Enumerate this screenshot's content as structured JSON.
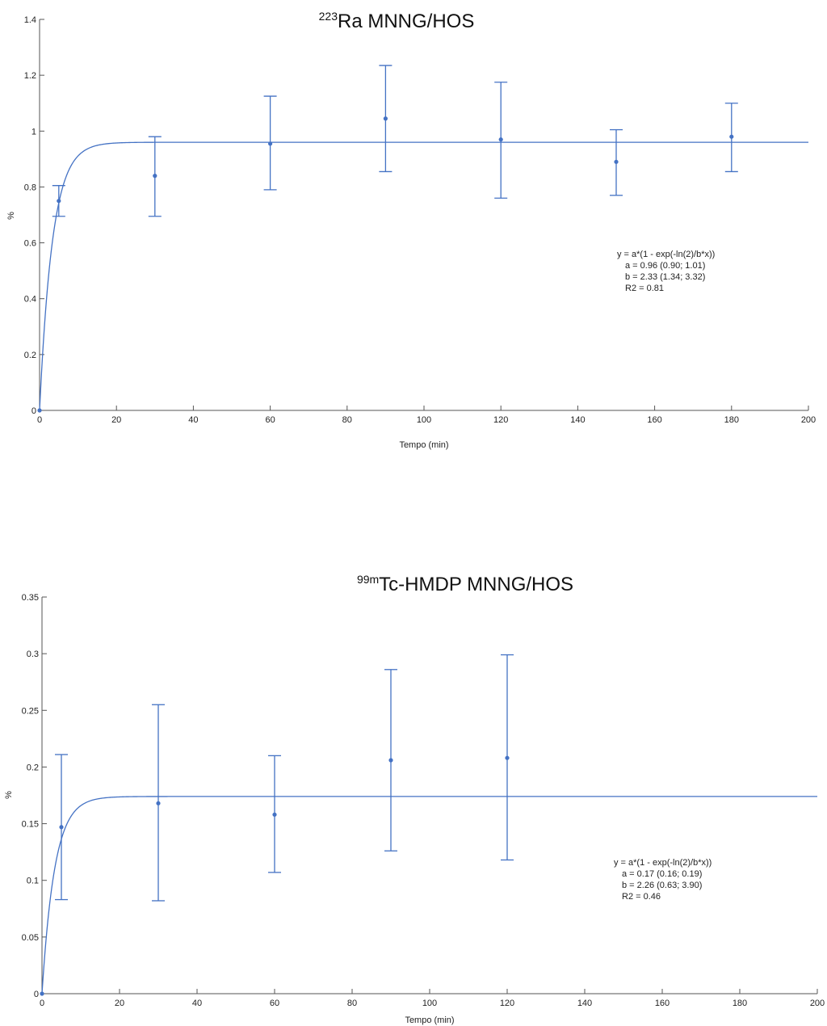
{
  "chart_data": [
    {
      "type": "scatter",
      "title_sup": "223",
      "title_main": "Ra  MNNG/HOS",
      "xlabel": "Tempo (min)",
      "ylabel": "%",
      "xlim": [
        0,
        200
      ],
      "ylim": [
        0,
        1.4
      ],
      "xticks": [
        "0",
        "20",
        "40",
        "60",
        "80",
        "100",
        "120",
        "140",
        "160",
        "180",
        "200"
      ],
      "yticks": [
        "0",
        "0.2",
        "0.4",
        "0.6",
        "0.8",
        "1",
        "1.2",
        "1.4"
      ],
      "xtick_values": [
        0,
        20,
        40,
        60,
        80,
        100,
        120,
        140,
        160,
        180,
        200
      ],
      "ytick_values": [
        0,
        0.2,
        0.4,
        0.6,
        0.8,
        1.0,
        1.2,
        1.4
      ],
      "color": "#4472c4",
      "points": [
        {
          "x": 0,
          "y": 0,
          "err_low": 0,
          "err_high": 0
        },
        {
          "x": 5,
          "y": 0.75,
          "err_low": 0.695,
          "err_high": 0.805
        },
        {
          "x": 30,
          "y": 0.84,
          "err_low": 0.695,
          "err_high": 0.98
        },
        {
          "x": 60,
          "y": 0.955,
          "err_low": 0.79,
          "err_high": 1.125
        },
        {
          "x": 90,
          "y": 1.045,
          "err_low": 0.855,
          "err_high": 1.235
        },
        {
          "x": 120,
          "y": 0.97,
          "err_low": 0.76,
          "err_high": 1.175
        },
        {
          "x": 150,
          "y": 0.89,
          "err_low": 0.77,
          "err_high": 1.005
        },
        {
          "x": 180,
          "y": 0.98,
          "err_low": 0.855,
          "err_high": 1.1
        }
      ],
      "fit": {
        "a": 0.96,
        "b": 2.33
      },
      "annotation": [
        "y = a*(1 - exp(-ln(2)/b*x))",
        "a = 0.96 (0.90; 1.01)",
        "b = 2.33 (1.34; 3.32)",
        "R2 = 0.81"
      ]
    },
    {
      "type": "scatter",
      "title_sup": "99m",
      "title_main": "Tc-HMDP MNNG/HOS",
      "xlabel": "Tempo (min)",
      "ylabel": "%",
      "xlim": [
        0,
        200
      ],
      "ylim": [
        0,
        0.35
      ],
      "xticks": [
        "0",
        "20",
        "40",
        "60",
        "80",
        "100",
        "120",
        "140",
        "160",
        "180",
        "200"
      ],
      "yticks": [
        "0",
        "0.05",
        "0.1",
        "0.15",
        "0.2",
        "0.25",
        "0.3",
        "0.35"
      ],
      "xtick_values": [
        0,
        20,
        40,
        60,
        80,
        100,
        120,
        140,
        160,
        180,
        200
      ],
      "ytick_values": [
        0,
        0.05,
        0.1,
        0.15,
        0.2,
        0.25,
        0.3,
        0.35
      ],
      "color": "#4472c4",
      "points": [
        {
          "x": 0,
          "y": 0,
          "err_low": 0,
          "err_high": 0
        },
        {
          "x": 5,
          "y": 0.147,
          "err_low": 0.083,
          "err_high": 0.211
        },
        {
          "x": 30,
          "y": 0.168,
          "err_low": 0.082,
          "err_high": 0.255
        },
        {
          "x": 60,
          "y": 0.158,
          "err_low": 0.107,
          "err_high": 0.21
        },
        {
          "x": 90,
          "y": 0.206,
          "err_low": 0.126,
          "err_high": 0.286
        },
        {
          "x": 120,
          "y": 0.208,
          "err_low": 0.118,
          "err_high": 0.299
        }
      ],
      "fit": {
        "a": 0.174,
        "b": 2.26
      },
      "annotation": [
        "y = a*(1 - exp(-ln(2)/b*x))",
        "a = 0.17 (0.16; 0.19)",
        "b = 2.26 (0.63; 3.90)",
        "R2 = 0.46"
      ]
    }
  ]
}
